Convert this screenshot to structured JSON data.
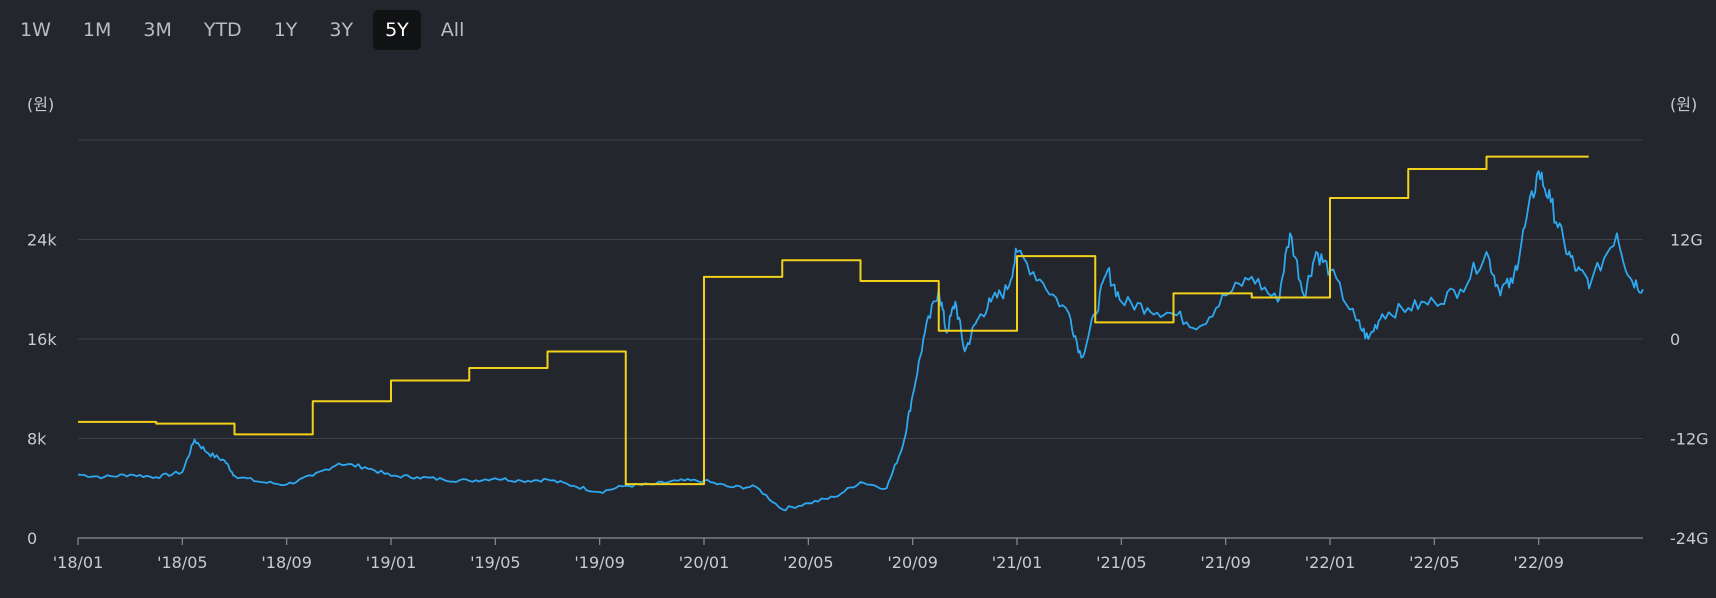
{
  "range_tabs": [
    {
      "label": "1W",
      "active": false
    },
    {
      "label": "1M",
      "active": false
    },
    {
      "label": "3M",
      "active": false
    },
    {
      "label": "YTD",
      "active": false
    },
    {
      "label": "1Y",
      "active": false
    },
    {
      "label": "3Y",
      "active": false
    },
    {
      "label": "5Y",
      "active": true
    },
    {
      "label": "All",
      "active": false
    }
  ],
  "chart_data": {
    "type": "line",
    "title": "",
    "xlabel": "",
    "left_axis": {
      "unit_label": "(원)",
      "ticks": [
        {
          "value": 0,
          "label": "0"
        },
        {
          "value": 8000,
          "label": "8k"
        },
        {
          "value": 16000,
          "label": "16k"
        },
        {
          "value": 24000,
          "label": "24k"
        }
      ],
      "range": [
        0,
        32000
      ]
    },
    "right_axis": {
      "unit_label": "(원)",
      "ticks": [
        {
          "value": -24,
          "label": "-24G"
        },
        {
          "value": -12,
          "label": "-12G"
        },
        {
          "value": 0,
          "label": "0"
        },
        {
          "value": 12,
          "label": "12G"
        }
      ],
      "range": [
        -24,
        24
      ]
    },
    "x_axis": {
      "range": [
        "2018-01",
        "2023-01"
      ],
      "ticks": [
        {
          "value": "2018-01",
          "label": "'18/01"
        },
        {
          "value": "2018-05",
          "label": "'18/05"
        },
        {
          "value": "2018-09",
          "label": "'18/09"
        },
        {
          "value": "2019-01",
          "label": "'19/01"
        },
        {
          "value": "2019-05",
          "label": "'19/05"
        },
        {
          "value": "2019-09",
          "label": "'19/09"
        },
        {
          "value": "2020-01",
          "label": "'20/01"
        },
        {
          "value": "2020-05",
          "label": "'20/05"
        },
        {
          "value": "2020-09",
          "label": "'20/09"
        },
        {
          "value": "2021-01",
          "label": "'21/01"
        },
        {
          "value": "2021-05",
          "label": "'21/05"
        },
        {
          "value": "2021-09",
          "label": "'21/09"
        },
        {
          "value": "2022-01",
          "label": "'22/01"
        },
        {
          "value": "2022-05",
          "label": "'22/05"
        },
        {
          "value": "2022-09",
          "label": "'22/09"
        }
      ]
    },
    "grid": true,
    "series": [
      {
        "kind": "price",
        "axis": "left",
        "color": "#2ea8f0",
        "points": [
          [
            "2018-01",
            5100
          ],
          [
            "2018-02",
            4900
          ],
          [
            "2018-03",
            5100
          ],
          [
            "2018-04",
            4900
          ],
          [
            "2018-05",
            5300
          ],
          [
            "2018-05-15",
            7900
          ],
          [
            "2018-06",
            6800
          ],
          [
            "2018-06-20",
            6200
          ],
          [
            "2018-07",
            5000
          ],
          [
            "2018-08",
            4500
          ],
          [
            "2018-09",
            4300
          ],
          [
            "2018-10",
            5000
          ],
          [
            "2018-11",
            6000
          ],
          [
            "2018-12",
            5700
          ],
          [
            "2019-01",
            5000
          ],
          [
            "2019-02",
            4900
          ],
          [
            "2019-03",
            4700
          ],
          [
            "2019-04",
            4600
          ],
          [
            "2019-05",
            4800
          ],
          [
            "2019-06",
            4600
          ],
          [
            "2019-07",
            4700
          ],
          [
            "2019-08",
            4200
          ],
          [
            "2019-09",
            3700
          ],
          [
            "2019-10",
            4200
          ],
          [
            "2019-11",
            4300
          ],
          [
            "2019-12",
            4600
          ],
          [
            "2020-01",
            4600
          ],
          [
            "2020-02",
            4100
          ],
          [
            "2020-03",
            4100
          ],
          [
            "2020-04",
            2300
          ],
          [
            "2020-05",
            2800
          ],
          [
            "2020-06",
            3300
          ],
          [
            "2020-07",
            4500
          ],
          [
            "2020-08",
            4000
          ],
          [
            "2020-08-20",
            7500
          ],
          [
            "2020-09",
            11500
          ],
          [
            "2020-09-15",
            16500
          ],
          [
            "2020-10",
            20000
          ],
          [
            "2020-10-10",
            16500
          ],
          [
            "2020-10-20",
            19000
          ],
          [
            "2020-11",
            15000
          ],
          [
            "2020-11-15",
            17500
          ],
          [
            "2020-12",
            19000
          ],
          [
            "2020-12-20",
            20000
          ],
          [
            "2021-01",
            23000
          ],
          [
            "2021-02",
            20500
          ],
          [
            "2021-03",
            18000
          ],
          [
            "2021-03-15",
            14500
          ],
          [
            "2021-04",
            18000
          ],
          [
            "2021-04-15",
            21500
          ],
          [
            "2021-05",
            19000
          ],
          [
            "2021-06",
            18500
          ],
          [
            "2021-07",
            18000
          ],
          [
            "2021-08",
            17000
          ],
          [
            "2021-09",
            19500
          ],
          [
            "2021-10",
            21000
          ],
          [
            "2021-11",
            19000
          ],
          [
            "2021-11-15",
            24500
          ],
          [
            "2021-12",
            19500
          ],
          [
            "2021-12-15",
            23000
          ],
          [
            "2022-01",
            21500
          ],
          [
            "2022-02",
            17500
          ],
          [
            "2022-02-15",
            16000
          ],
          [
            "2022-03",
            18000
          ],
          [
            "2022-04",
            18500
          ],
          [
            "2022-05",
            19000
          ],
          [
            "2022-06",
            20000
          ],
          [
            "2022-07",
            23000
          ],
          [
            "2022-07-15",
            20000
          ],
          [
            "2022-08",
            20500
          ],
          [
            "2022-08-15",
            25000
          ],
          [
            "2022-09",
            29500
          ],
          [
            "2022-09-15",
            27000
          ],
          [
            "2022-10",
            23500
          ],
          [
            "2022-10-15",
            21500
          ],
          [
            "2022-11",
            20500
          ],
          [
            "2022-12",
            24500
          ],
          [
            "2022-12-15",
            21000
          ],
          [
            "2023-01",
            20000
          ]
        ]
      },
      {
        "kind": "step",
        "axis": "right",
        "color": "#f2d11a",
        "points": [
          [
            "2018-01",
            -10
          ],
          [
            "2018-04",
            -10.2
          ],
          [
            "2018-07",
            -11.5
          ],
          [
            "2018-10",
            -7.5
          ],
          [
            "2019-01",
            -5
          ],
          [
            "2019-04",
            -3.5
          ],
          [
            "2019-07",
            -1.5
          ],
          [
            "2019-10",
            -17.5
          ],
          [
            "2020-01",
            7.5
          ],
          [
            "2020-04",
            9.5
          ],
          [
            "2020-07",
            7
          ],
          [
            "2020-10",
            1
          ],
          [
            "2021-01",
            10
          ],
          [
            "2021-04",
            2
          ],
          [
            "2021-07",
            5.5
          ],
          [
            "2021-10",
            5
          ],
          [
            "2022-01",
            17
          ],
          [
            "2022-04",
            20.5
          ],
          [
            "2022-07",
            22
          ],
          [
            "2022-10",
            22
          ]
        ],
        "end": "2022-10"
      }
    ]
  }
}
